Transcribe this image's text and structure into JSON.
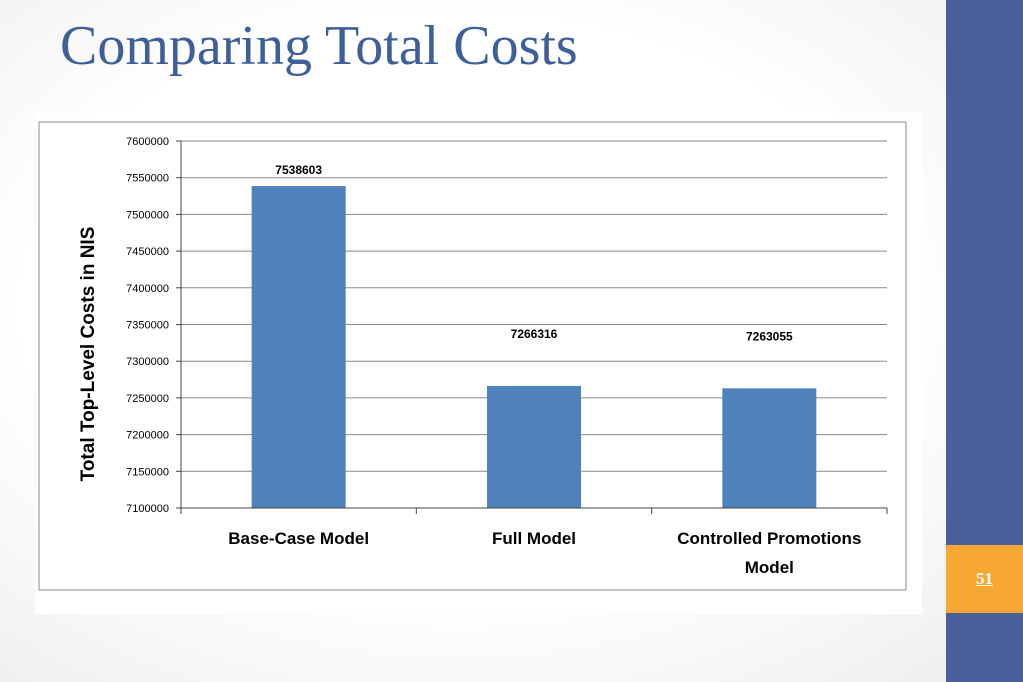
{
  "slide": {
    "title": "Comparing Total Costs",
    "page_number": "51"
  },
  "colors": {
    "title": "#3f5f9a",
    "side_bar": "#4a5f9c",
    "page_box": "#f7a734",
    "bar": "#4f81bd",
    "grid": "#8a8a8a"
  },
  "chart_data": {
    "type": "bar",
    "title": "",
    "xlabel": "",
    "ylabel": "Total Top-Level Costs in NIS",
    "categories": [
      "Base-Case Model",
      "Full Model",
      "Controlled Promotions Model"
    ],
    "values": [
      7538603,
      7266316,
      7263055
    ],
    "data_labels": [
      "7538603",
      "7266316",
      "7263055"
    ],
    "ylim": [
      7100000,
      7600000
    ],
    "yticks": [
      7100000,
      7150000,
      7200000,
      7250000,
      7300000,
      7350000,
      7400000,
      7450000,
      7500000,
      7550000,
      7600000
    ],
    "grid": true,
    "legend": "none"
  }
}
